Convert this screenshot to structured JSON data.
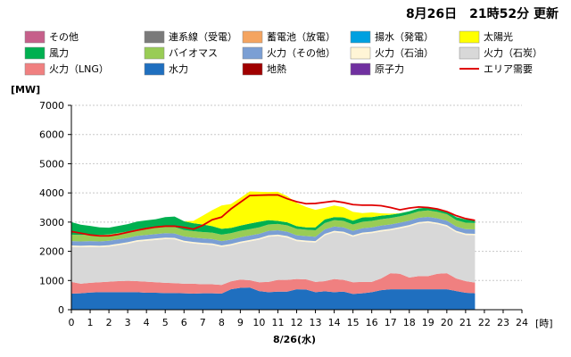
{
  "header": {
    "updated_text": "8月26日　21時52分 更新"
  },
  "chart_data": {
    "type": "area",
    "stacked": true,
    "ylabel": "[MW]",
    "xlabel": "8/26(水)",
    "x_unit": "[時]",
    "ylim": [
      0,
      7000
    ],
    "xlim": [
      0,
      24
    ],
    "yticks": [
      0,
      1000,
      2000,
      3000,
      4000,
      5000,
      6000,
      7000
    ],
    "xticks": [
      0,
      1,
      2,
      3,
      4,
      5,
      6,
      7,
      8,
      9,
      10,
      11,
      12,
      13,
      14,
      15,
      16,
      17,
      18,
      19,
      20,
      21,
      22,
      23,
      24
    ],
    "grid": true,
    "legend_position": "top",
    "x": [
      0,
      0.5,
      1,
      1.5,
      2,
      2.5,
      3,
      3.5,
      4,
      4.5,
      5,
      5.5,
      6,
      6.5,
      7,
      7.5,
      8,
      8.5,
      9,
      9.5,
      10,
      10.5,
      11,
      11.5,
      12,
      12.5,
      13,
      13.5,
      14,
      14.5,
      15,
      15.5,
      16,
      16.5,
      17,
      17.5,
      18,
      18.5,
      19,
      19.5,
      20,
      20.5,
      21,
      21.5
    ],
    "series": [
      {
        "name": "水力",
        "color": "#1f6fbf",
        "values": [
          550,
          560,
          590,
          600,
          600,
          600,
          600,
          600,
          580,
          580,
          570,
          570,
          560,
          550,
          560,
          560,
          550,
          700,
          750,
          760,
          640,
          600,
          620,
          620,
          700,
          690,
          600,
          630,
          600,
          620,
          540,
          560,
          600,
          670,
          700,
          700,
          700,
          700,
          700,
          700,
          700,
          640,
          580,
          560
        ]
      },
      {
        "name": "火力（LNG）",
        "color": "#f08080",
        "values": [
          400,
          330,
          330,
          340,
          360,
          380,
          390,
          380,
          380,
          360,
          350,
          340,
          330,
          340,
          310,
          310,
          300,
          270,
          280,
          250,
          300,
          350,
          400,
          400,
          350,
          350,
          350,
          350,
          450,
          400,
          400,
          390,
          350,
          400,
          550,
          530,
          400,
          450,
          450,
          530,
          550,
          430,
          400,
          370
        ]
      },
      {
        "name": "火力（石炭）",
        "color": "#d8d8d8",
        "values": [
          1200,
          1250,
          1230,
          1200,
          1200,
          1230,
          1270,
          1350,
          1400,
          1450,
          1500,
          1500,
          1420,
          1380,
          1370,
          1350,
          1300,
          1230,
          1250,
          1330,
          1460,
          1550,
          1500,
          1450,
          1300,
          1280,
          1350,
          1570,
          1600,
          1600,
          1560,
          1640,
          1670,
          1610,
          1470,
          1550,
          1750,
          1800,
          1830,
          1700,
          1600,
          1580,
          1580,
          1620
        ]
      },
      {
        "name": "火力（石油）",
        "color": "#fff5d6",
        "values": [
          50,
          50,
          50,
          50,
          50,
          50,
          50,
          50,
          50,
          50,
          50,
          50,
          50,
          50,
          50,
          50,
          50,
          50,
          50,
          50,
          50,
          50,
          50,
          50,
          50,
          50,
          50,
          50,
          50,
          50,
          50,
          50,
          50,
          50,
          50,
          50,
          50,
          50,
          50,
          50,
          50,
          50,
          50,
          50
        ]
      },
      {
        "name": "火力（その他）",
        "color": "#7b9fd4",
        "values": [
          150,
          150,
          150,
          150,
          150,
          150,
          150,
          150,
          150,
          150,
          150,
          150,
          150,
          150,
          150,
          150,
          150,
          150,
          150,
          150,
          150,
          150,
          150,
          150,
          150,
          150,
          150,
          150,
          150,
          150,
          150,
          150,
          150,
          150,
          150,
          150,
          150,
          150,
          150,
          150,
          150,
          150,
          150,
          150
        ]
      },
      {
        "name": "バイオマス",
        "color": "#99cc55",
        "values": [
          220,
          220,
          220,
          220,
          220,
          220,
          220,
          220,
          220,
          220,
          220,
          220,
          220,
          220,
          220,
          220,
          220,
          220,
          220,
          220,
          220,
          220,
          220,
          220,
          220,
          220,
          220,
          220,
          220,
          220,
          220,
          220,
          220,
          220,
          220,
          220,
          220,
          220,
          220,
          220,
          220,
          220,
          220,
          220
        ]
      },
      {
        "name": "風力",
        "color": "#00b050",
        "values": [
          430,
          350,
          300,
          260,
          230,
          240,
          250,
          270,
          280,
          290,
          330,
          360,
          300,
          270,
          260,
          220,
          200,
          180,
          180,
          190,
          190,
          150,
          100,
          100,
          90,
          80,
          100,
          120,
          100,
          120,
          130,
          150,
          130,
          120,
          110,
          100,
          100,
          100,
          100,
          120,
          100,
          100,
          110,
          100
        ]
      },
      {
        "name": "太陽光",
        "color": "#ffff00",
        "values": [
          0,
          0,
          0,
          0,
          0,
          0,
          0,
          0,
          0,
          0,
          0,
          0,
          0,
          80,
          300,
          550,
          800,
          820,
          950,
          1100,
          1030,
          960,
          1000,
          900,
          800,
          700,
          600,
          400,
          400,
          350,
          300,
          150,
          160,
          80,
          40,
          5,
          0,
          0,
          0,
          0,
          0,
          0,
          0,
          0
        ]
      },
      {
        "name": "揚水（発電）",
        "color": "#00a0e0",
        "values": [
          0,
          0,
          0,
          0,
          0,
          0,
          0,
          0,
          0,
          0,
          0,
          0,
          0,
          0,
          0,
          0,
          0,
          0,
          0,
          0,
          0,
          0,
          0,
          0,
          0,
          0,
          0,
          0,
          0,
          0,
          0,
          0,
          0,
          0,
          0,
          0,
          0,
          0,
          0,
          0,
          0,
          0,
          0,
          0
        ]
      },
      {
        "name": "蓄電池（放電）",
        "color": "#f4a460",
        "values": [
          0,
          0,
          0,
          0,
          0,
          0,
          0,
          0,
          0,
          0,
          0,
          0,
          0,
          0,
          0,
          0,
          0,
          0,
          0,
          0,
          0,
          0,
          0,
          0,
          0,
          0,
          0,
          0,
          0,
          0,
          0,
          0,
          0,
          0,
          0,
          0,
          0,
          0,
          0,
          0,
          0,
          0,
          0,
          0
        ]
      },
      {
        "name": "連系線（受電）",
        "color": "#7a7a7a",
        "values": [
          0,
          0,
          0,
          0,
          0,
          0,
          0,
          0,
          0,
          0,
          0,
          0,
          0,
          0,
          0,
          0,
          0,
          0,
          0,
          0,
          0,
          0,
          0,
          0,
          0,
          0,
          0,
          0,
          0,
          0,
          0,
          0,
          0,
          0,
          0,
          0,
          0,
          0,
          0,
          0,
          0,
          0,
          0,
          0
        ]
      },
      {
        "name": "その他",
        "color": "#c65f8a",
        "values": [
          0,
          0,
          0,
          0,
          0,
          0,
          0,
          0,
          0,
          0,
          0,
          0,
          0,
          0,
          0,
          0,
          0,
          0,
          0,
          0,
          0,
          0,
          0,
          0,
          0,
          0,
          0,
          0,
          0,
          0,
          0,
          0,
          0,
          0,
          0,
          0,
          0,
          0,
          0,
          0,
          0,
          0,
          0,
          0
        ]
      },
      {
        "name": "地熱",
        "color": "#a00000",
        "values": [
          0,
          0,
          0,
          0,
          0,
          0,
          0,
          0,
          0,
          0,
          0,
          0,
          0,
          0,
          0,
          0,
          0,
          0,
          0,
          0,
          0,
          0,
          0,
          0,
          0,
          0,
          0,
          0,
          0,
          0,
          0,
          0,
          0,
          0,
          0,
          0,
          0,
          0,
          0,
          0,
          0,
          0,
          0,
          0
        ]
      },
      {
        "name": "原子力",
        "color": "#7030a0",
        "values": [
          0,
          0,
          0,
          0,
          0,
          0,
          0,
          0,
          0,
          0,
          0,
          0,
          0,
          0,
          0,
          0,
          0,
          0,
          0,
          0,
          0,
          0,
          0,
          0,
          0,
          0,
          0,
          0,
          0,
          0,
          0,
          0,
          0,
          0,
          0,
          0,
          0,
          0,
          0,
          0,
          0,
          0,
          0,
          0
        ]
      }
    ],
    "demand": {
      "name": "エリア需要",
      "color": "#e00000",
      "values": [
        2680,
        2620,
        2560,
        2530,
        2530,
        2580,
        2650,
        2720,
        2780,
        2830,
        2860,
        2860,
        2820,
        2760,
        2890,
        3080,
        3170,
        3450,
        3680,
        3910,
        3920,
        3930,
        3930,
        3800,
        3700,
        3630,
        3640,
        3680,
        3720,
        3670,
        3600,
        3580,
        3580,
        3560,
        3500,
        3420,
        3480,
        3520,
        3500,
        3450,
        3360,
        3220,
        3120,
        3060
      ]
    },
    "legend_order": [
      "その他",
      "連系線（受電）",
      "蓄電池（放電）",
      "揚水（発電）",
      "太陽光",
      "風力",
      "バイオマス",
      "火力（その他）",
      "火力（石油）",
      "火力（石炭）",
      "火力（LNG）",
      "水力",
      "地熱",
      "原子力",
      "エリア需要"
    ]
  }
}
